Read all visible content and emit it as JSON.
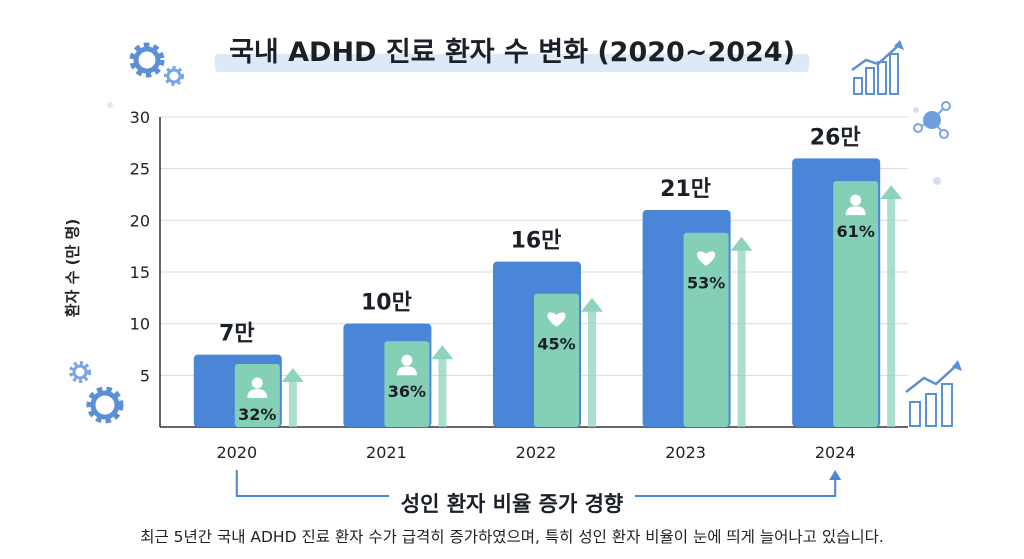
{
  "title": "국내 ADHD 진료 환자 수 변화 (2020~2024)",
  "summary": "성인 환자 비율 증가 경향",
  "caption": "최근 5년간 국내 ADHD 진료 환자 수가 급격히 증가하였으며, 특히 성인 환자 비율이 눈에 띄게 늘어나고 있습니다.",
  "colors": {
    "total_bar": "#4a86d8",
    "adult_bar": "#84cfb6",
    "arrow": "#8fd3bf",
    "icon_blue": "#5b8fd6"
  },
  "chart_data": {
    "type": "bar",
    "title": "국내 ADHD 진료 환자 수 변화 (2020~2024)",
    "xlabel": "",
    "ylabel": "환자 수 (만 명)",
    "ylim": [
      0,
      30
    ],
    "yticks": [
      5,
      10,
      15,
      20,
      25,
      30
    ],
    "grid": true,
    "categories": [
      "2020",
      "2021",
      "2022",
      "2023",
      "2024"
    ],
    "series": [
      {
        "values": [
          7,
          10,
          16,
          21,
          26
        ],
        "labels": [
          "7만",
          "10만",
          "16만",
          "21만",
          "26만"
        ]
      },
      {
        "values": [
          6.1,
          8.3,
          12.9,
          18.8,
          23.8
        ],
        "labels": [
          "32%",
          "36%",
          "45%",
          "53%",
          "61%"
        ]
      }
    ],
    "adult_icons": [
      "person-icon",
      "person-icon",
      "heart-icon",
      "heart-icon",
      "person-icon"
    ]
  }
}
